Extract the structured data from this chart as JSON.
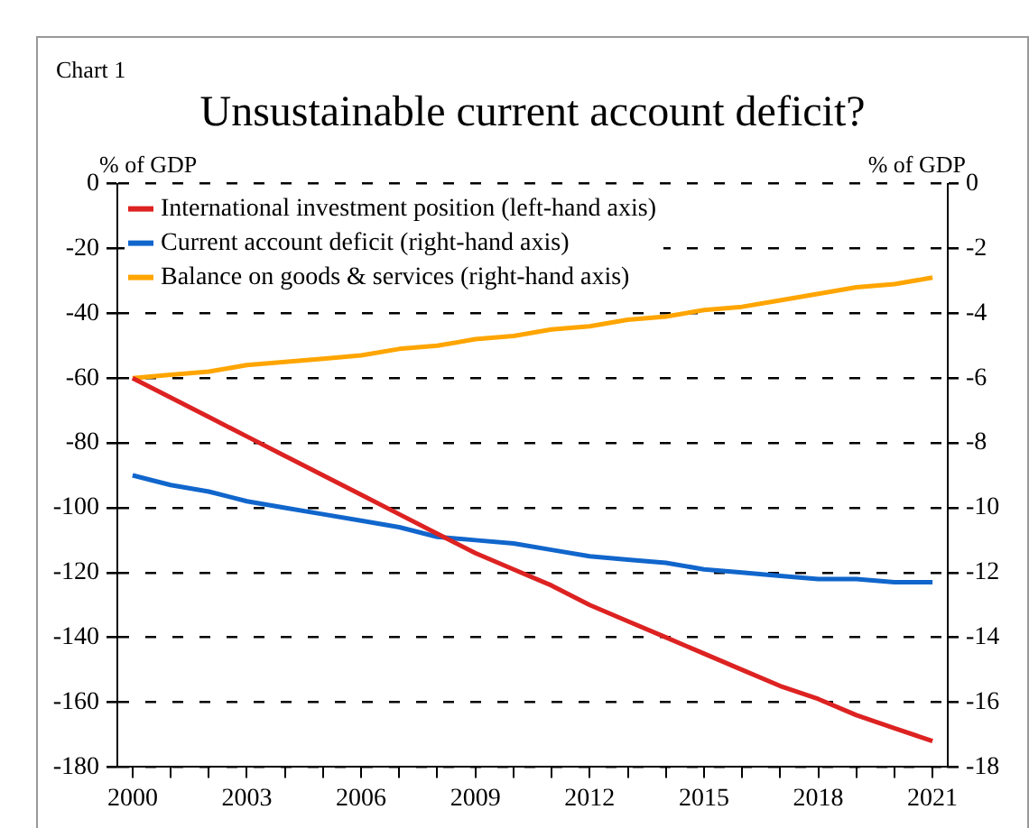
{
  "chart_data": {
    "type": "line",
    "title": "Unsustainable current account deficit?",
    "annotations": [
      "Chart 1"
    ],
    "ylabel": "% of GDP",
    "y2label": "% of GDP",
    "x": [
      2000,
      2001,
      2002,
      2003,
      2004,
      2005,
      2006,
      2007,
      2008,
      2009,
      2010,
      2011,
      2012,
      2013,
      2014,
      2015,
      2016,
      2017,
      2018,
      2019,
      2020,
      2021
    ],
    "series": [
      {
        "name": "International investment position (left-hand axis)",
        "color": "#dd2222",
        "values": [
          -60,
          -66,
          -72,
          -78,
          -84,
          -90,
          -96,
          -102,
          -108,
          -114,
          -119,
          -124,
          -130,
          -135,
          -140,
          -145,
          -150,
          -155,
          -159,
          -164,
          -168,
          -172
        ]
      },
      {
        "name": "Current account deficit (right-hand axis)",
        "color": "#1166cc",
        "axis": "y2",
        "values": [
          -9.0,
          -9.3,
          -9.5,
          -9.8,
          -10.0,
          -10.2,
          -10.4,
          -10.6,
          -10.9,
          -11.0,
          -11.1,
          -11.3,
          -11.5,
          -11.6,
          -11.7,
          -11.9,
          -12.0,
          -12.1,
          -12.2,
          -12.2,
          -12.3,
          -12.3
        ]
      },
      {
        "name": "Balance on goods & services (right-hand axis)",
        "color": "#ffa500",
        "axis": "y2",
        "values": [
          -6.0,
          -5.9,
          -5.8,
          -5.6,
          -5.5,
          -5.4,
          -5.3,
          -5.1,
          -5.0,
          -4.8,
          -4.7,
          -4.5,
          -4.4,
          -4.2,
          -4.1,
          -3.9,
          -3.8,
          -3.6,
          -3.4,
          -3.2,
          -3.1,
          -2.9
        ]
      }
    ],
    "xlim": [
      1999.6,
      2021.4
    ],
    "xticks": [
      2000,
      {
        "value": 2001,
        "label": null
      },
      {
        "value": 2002,
        "label": null
      },
      2003,
      {
        "value": 2004,
        "label": null
      },
      {
        "value": 2005,
        "label": null
      },
      2006,
      {
        "value": 2007,
        "label": null
      },
      {
        "value": 2008,
        "label": null
      },
      2009,
      {
        "value": 2010,
        "label": null
      },
      {
        "value": 2011,
        "label": null
      },
      2012,
      {
        "value": 2013,
        "label": null
      },
      {
        "value": 2014,
        "label": null
      },
      2015,
      {
        "value": 2016,
        "label": null
      },
      {
        "value": 2017,
        "label": null
      },
      2018,
      {
        "value": 2019,
        "label": null
      },
      {
        "value": 2020,
        "label": null
      },
      2021
    ],
    "ylim": [
      -180,
      0
    ],
    "yticks": [
      -180,
      -160,
      -140,
      -120,
      -100,
      -80,
      -60,
      -40,
      -20,
      0
    ],
    "y2lim": [
      -18,
      0
    ],
    "y2ticks": [
      -18,
      -16,
      -14,
      -12,
      -10,
      -8,
      -6,
      -4,
      -2,
      0
    ],
    "grid": "y",
    "line_style": "solid",
    "marker": "none",
    "legend": "top left"
  }
}
